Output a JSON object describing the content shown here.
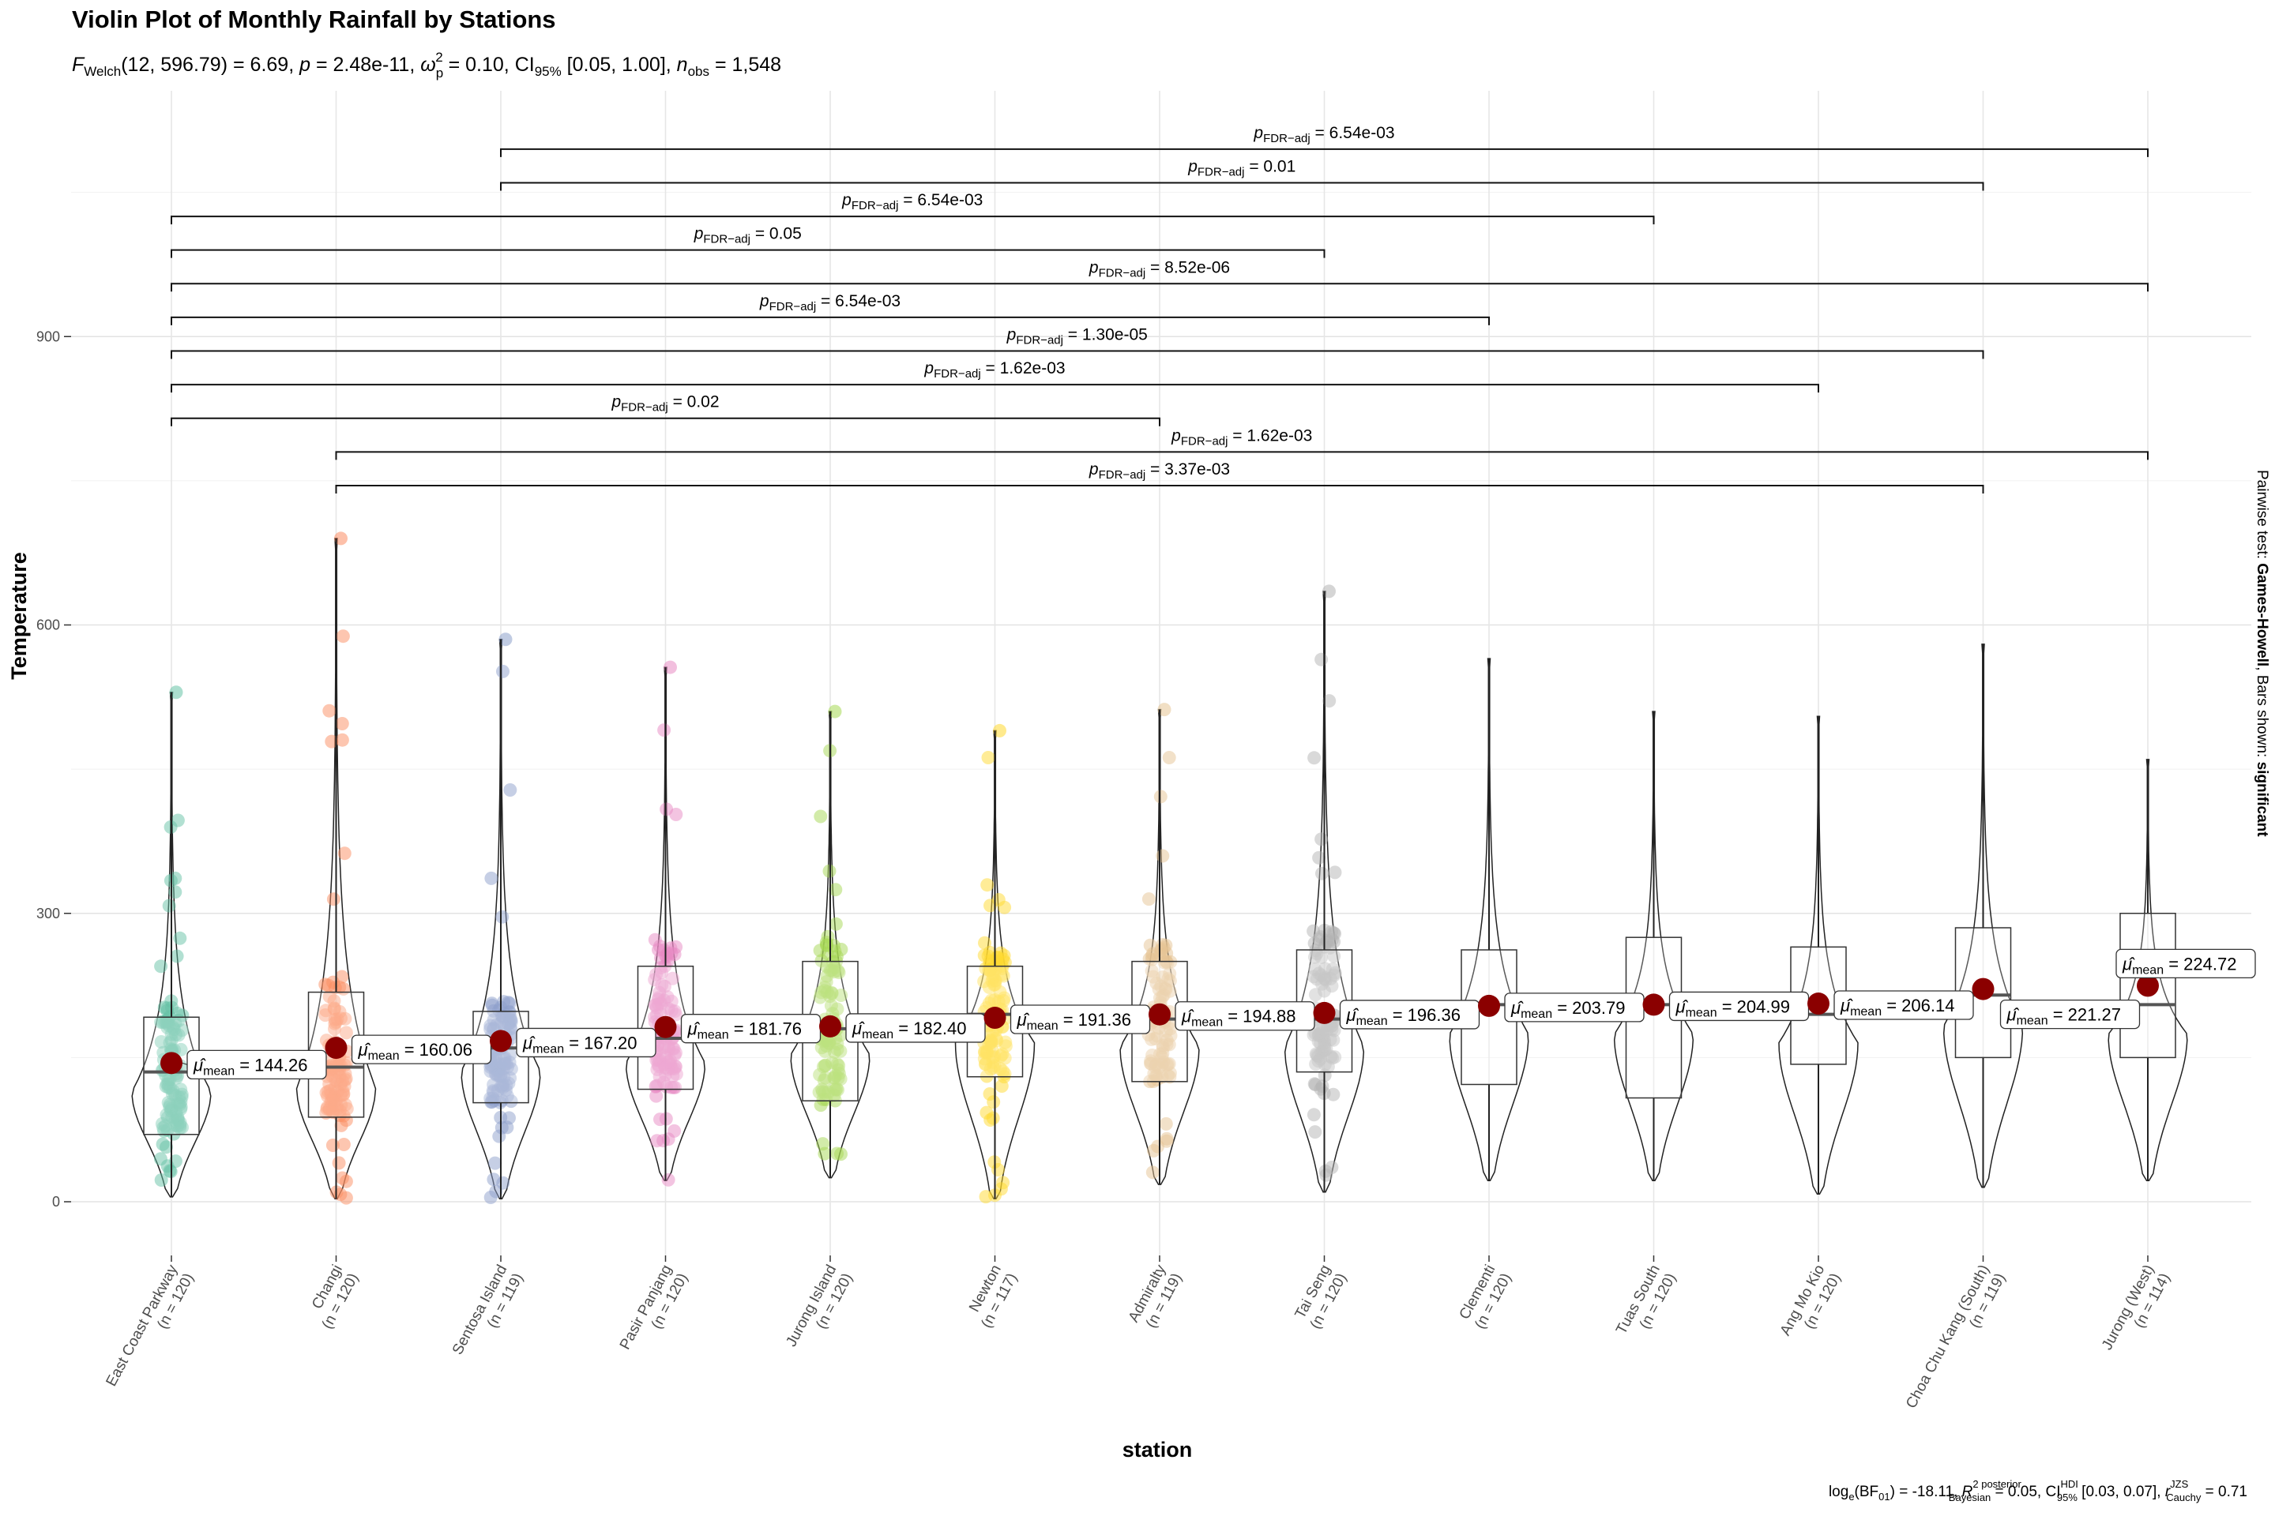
{
  "chart_data": {
    "type": "violin",
    "title": "Violin Plot of Monthly Rainfall by Stations",
    "subtitle": {
      "stat": "F",
      "stat_sub": "Welch",
      "df": "(12, 596.79)",
      "F_value": "6.69",
      "p_value": "2.48e-11",
      "omega_sq": "0.10",
      "ci_label": "CI",
      "ci_sub": "95%",
      "ci": "[0.05, 1.00]",
      "n_obs": "1,548"
    },
    "xlabel": "station",
    "ylabel": "Temperature",
    "ylim": [
      -60,
      1100
    ],
    "yticks": [
      0,
      300,
      600,
      900
    ],
    "grid": true,
    "categories": [
      "East Coast Parkway",
      "Changi",
      "Sentosa Island",
      "Pasir Panjang",
      "Jurong Island",
      "Newton",
      "Admiralty",
      "Tai Seng",
      "Clementi",
      "Tuas South",
      "Ang Mo Kio",
      "Choa Chu Kang (South)",
      "Jurong (West)"
    ],
    "n_labels": [
      "(n = 120)",
      "(n = 120)",
      "(n = 119)",
      "(n = 120)",
      "(n = 120)",
      "(n = 117)",
      "(n = 119)",
      "(n = 120)",
      "(n = 120)",
      "(n = 120)",
      "(n = 120)",
      "(n = 119)",
      "(n = 114)"
    ],
    "colors": [
      "#66C2A5",
      "#FC8D62",
      "#8DA0CB",
      "#E78AC3",
      "#A6D854",
      "#FFD92F",
      "#E5C494",
      "#B3B3B3",
      "#66C2A5",
      "#FC8D62",
      "#8DA0CB",
      "#E78AC3",
      "#A6D854"
    ],
    "has_points": [
      true,
      true,
      true,
      true,
      true,
      true,
      true,
      true,
      false,
      false,
      false,
      false,
      false
    ],
    "means": [
      144.26,
      160.06,
      167.2,
      181.76,
      182.4,
      191.36,
      194.88,
      196.36,
      203.79,
      204.99,
      206.14,
      221.27,
      224.72
    ],
    "mean_labels": [
      "144.26",
      "160.06",
      "167.20",
      "181.76",
      "182.40",
      "191.36",
      "194.88",
      "196.36",
      "203.79",
      "204.99",
      "206.14",
      "221.27",
      "224.72"
    ],
    "mean_prefix": "μ̂",
    "mean_sub": "mean",
    "boxplot": [
      {
        "min": 5,
        "q1": 70,
        "median": 135,
        "q3": 192,
        "max": 530
      },
      {
        "min": 3,
        "q1": 88,
        "median": 140,
        "q3": 218,
        "max": 690
      },
      {
        "min": 3,
        "q1": 103,
        "median": 160,
        "q3": 198,
        "max": 585
      },
      {
        "min": 22,
        "q1": 117,
        "median": 170,
        "q3": 245,
        "max": 556
      },
      {
        "min": 25,
        "q1": 105,
        "median": 180,
        "q3": 250,
        "max": 510
      },
      {
        "min": 3,
        "q1": 130,
        "median": 195,
        "q3": 245,
        "max": 490
      },
      {
        "min": 18,
        "q1": 125,
        "median": 190,
        "q3": 250,
        "max": 512
      },
      {
        "min": 10,
        "q1": 135,
        "median": 190,
        "q3": 262,
        "max": 635
      },
      {
        "min": 22,
        "q1": 122,
        "median": 205,
        "q3": 262,
        "max": 565
      },
      {
        "min": 22,
        "q1": 108,
        "median": 205,
        "q3": 275,
        "max": 510
      },
      {
        "min": 8,
        "q1": 143,
        "median": 195,
        "q3": 265,
        "max": 505
      },
      {
        "min": 15,
        "q1": 150,
        "median": 215,
        "q3": 285,
        "max": 580
      },
      {
        "min": 22,
        "q1": 150,
        "median": 205,
        "q3": 300,
        "max": 460
      }
    ],
    "comparisons": [
      {
        "from": 2,
        "to": 12,
        "y": 1095,
        "label": "6.54e-03"
      },
      {
        "from": 2,
        "to": 11,
        "y": 1060,
        "label": "0.01"
      },
      {
        "from": 0,
        "to": 9,
        "y": 1025,
        "label": "6.54e-03"
      },
      {
        "from": 0,
        "to": 7,
        "y": 990,
        "label": "0.05"
      },
      {
        "from": 0,
        "to": 12,
        "y": 955,
        "label": "8.52e-06"
      },
      {
        "from": 0,
        "to": 8,
        "y": 920,
        "label": "6.54e-03"
      },
      {
        "from": 0,
        "to": 11,
        "y": 885,
        "label": "1.30e-05"
      },
      {
        "from": 0,
        "to": 10,
        "y": 850,
        "label": "1.62e-03"
      },
      {
        "from": 0,
        "to": 6,
        "y": 815,
        "label": "0.02"
      },
      {
        "from": 1,
        "to": 12,
        "y": 780,
        "label": "1.62e-03"
      },
      {
        "from": 1,
        "to": 11,
        "y": 745,
        "label": "3.37e-03"
      }
    ],
    "pval_prefix": "p",
    "pval_sub": "FDR−adj",
    "side_note": {
      "prefix": "Pairwise test: ",
      "test": "Games-Howell",
      "middle": ", Bars shown: ",
      "shown": "significant"
    },
    "caption": {
      "bf": "log",
      "bf_sub": "e",
      "bf_arg": "(BF",
      "bf_arg_sub": "01",
      "bf_value": ") = -18.11,",
      "r2": "R",
      "r2_sup": "2 posterior",
      "r2_sub": "Bayesian",
      "r2_value": " = 0.05,",
      "ci": "CI",
      "ci_sup": "HDI",
      "ci_sub": "95%",
      "ci_value": " [0.03, 0.07],",
      "r": "r",
      "r_sup": "JZS",
      "r_sub": "Cauchy",
      "r_value": " = 0.71"
    }
  }
}
